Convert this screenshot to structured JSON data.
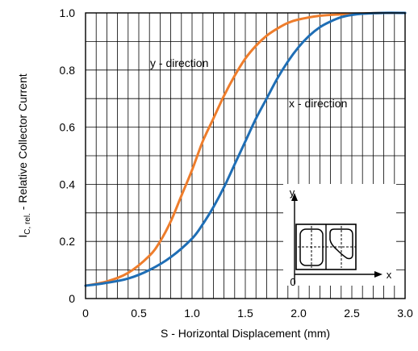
{
  "chart_data": {
    "type": "line",
    "xlabel": "S - Horizontal Displacement (mm)",
    "ylabel": {
      "prefix": "I",
      "subscript": "C, rel.",
      "suffix": " - Relative Collector Current"
    },
    "xlim": [
      0,
      3.0
    ],
    "ylim": [
      0,
      1.0
    ],
    "x_ticks": [
      "0",
      "0.5",
      "1.0",
      "1.5",
      "2.0",
      "2.5",
      "3.0"
    ],
    "y_ticks": [
      "0",
      "0.2",
      "0.4",
      "0.6",
      "0.8",
      "1.0"
    ],
    "grid": true,
    "series": [
      {
        "name": "y - direction",
        "color": "#ee7d2c",
        "x": [
          0,
          0.2,
          0.4,
          0.6,
          0.7,
          0.8,
          0.9,
          1.0,
          1.1,
          1.2,
          1.3,
          1.4,
          1.5,
          1.6,
          1.7,
          1.8,
          1.9,
          2.0,
          2.2,
          2.4,
          2.6,
          2.8,
          3.0
        ],
        "y": [
          0.045,
          0.06,
          0.09,
          0.15,
          0.2,
          0.27,
          0.36,
          0.45,
          0.55,
          0.63,
          0.71,
          0.78,
          0.84,
          0.885,
          0.92,
          0.945,
          0.965,
          0.977,
          0.99,
          0.995,
          0.998,
          1.0,
          1.0
        ]
      },
      {
        "name": "x - direction",
        "color": "#1f6eb5",
        "x": [
          0,
          0.2,
          0.4,
          0.6,
          0.8,
          1.0,
          1.1,
          1.2,
          1.3,
          1.4,
          1.5,
          1.6,
          1.7,
          1.8,
          1.9,
          2.0,
          2.1,
          2.2,
          2.3,
          2.4,
          2.5,
          2.6,
          2.8,
          3.0
        ],
        "y": [
          0.045,
          0.055,
          0.07,
          0.1,
          0.145,
          0.21,
          0.26,
          0.32,
          0.39,
          0.47,
          0.55,
          0.63,
          0.7,
          0.77,
          0.83,
          0.88,
          0.92,
          0.95,
          0.97,
          0.985,
          0.993,
          0.997,
          1.0,
          1.0
        ]
      }
    ],
    "annotations": {
      "y_curve_label": "y - direction",
      "x_curve_label": "x - direction"
    },
    "inset": {
      "axis_y": "y",
      "axis_x": "x",
      "origin": "0"
    }
  }
}
